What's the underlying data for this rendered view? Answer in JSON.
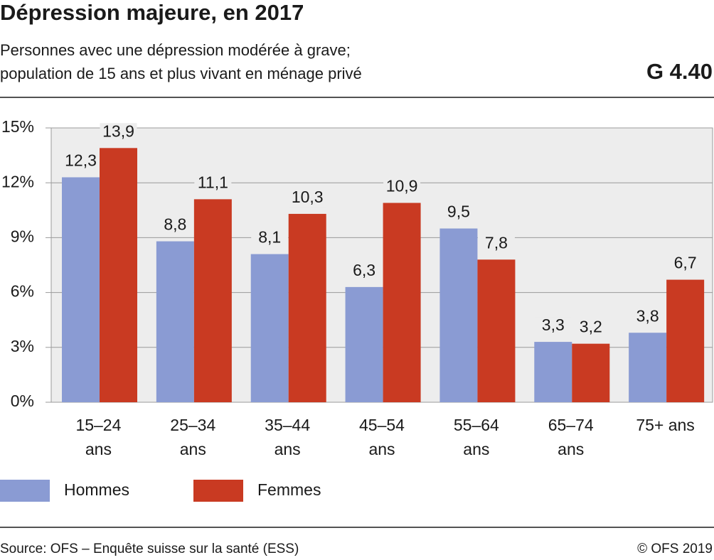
{
  "chart_data": {
    "type": "bar",
    "title": "Dépression majeure, en 2017",
    "subtitle": [
      "Personnes avec une dépression modérée à grave;",
      "population de 15 ans et plus vivant en ménage privé"
    ],
    "graphic_id": "G 4.40",
    "categories": [
      "15–24 ans",
      "25–34 ans",
      "35–44 ans",
      "45–54 ans",
      "55–64 ans",
      "65–74 ans",
      "75+ ans"
    ],
    "series": [
      {
        "name": "Hommes",
        "color": "#8a9bd3",
        "values": [
          12.3,
          8.8,
          8.1,
          6.3,
          9.5,
          3.3,
          3.8
        ],
        "value_labels": [
          "12,3",
          "8,8",
          "8,1",
          "6,3",
          "9,5",
          "3,3",
          "3,8"
        ]
      },
      {
        "name": "Femmes",
        "color": "#c93a22",
        "values": [
          13.9,
          11.1,
          10.3,
          10.9,
          7.8,
          3.2,
          6.7
        ],
        "value_labels": [
          "13,9",
          "11,1",
          "10,3",
          "10,9",
          "7,8",
          "3,2",
          "6,7"
        ]
      }
    ],
    "ylim": [
      0,
      15
    ],
    "yticks": [
      {
        "value": 0,
        "label": "0%"
      },
      {
        "value": 3,
        "label": "3%"
      },
      {
        "value": 6,
        "label": "6%"
      },
      {
        "value": 9,
        "label": "9%"
      },
      {
        "value": 12,
        "label": "12%"
      },
      {
        "value": 15,
        "label": "15%"
      }
    ],
    "grid": true,
    "legend": "bottom-left",
    "source": "Source: OFS – Enquête suisse sur la santé (ESS)",
    "copyright": "© OFS 2019"
  }
}
